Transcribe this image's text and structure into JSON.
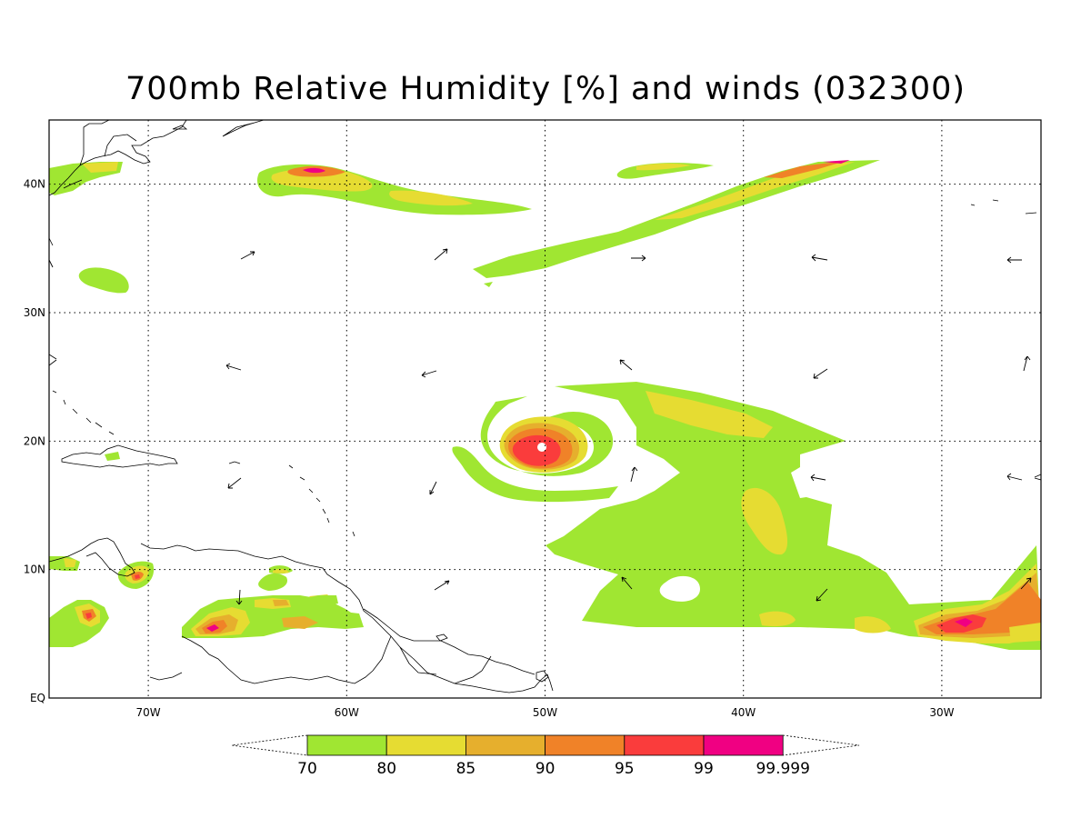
{
  "title": "700mb Relative Humidity [%] and winds (032300)",
  "map": {
    "lon_range": [
      -75,
      -25
    ],
    "lat_range": [
      0,
      45
    ],
    "lon_ticks": [
      {
        "value": -70,
        "label": "70W"
      },
      {
        "value": -60,
        "label": "60W"
      },
      {
        "value": -50,
        "label": "50W"
      },
      {
        "value": -40,
        "label": "40W"
      },
      {
        "value": -30,
        "label": "30W"
      }
    ],
    "lat_ticks": [
      {
        "value": 0,
        "label": "EQ"
      },
      {
        "value": 10,
        "label": "10N"
      },
      {
        "value": 20,
        "label": "20N"
      },
      {
        "value": 30,
        "label": "30N"
      },
      {
        "value": 40,
        "label": "40N"
      }
    ],
    "gridlines": "dotted",
    "wind_vectors": "arrows"
  },
  "colorbar": {
    "levels": [
      "70",
      "80",
      "85",
      "90",
      "95",
      "99",
      "99.999"
    ],
    "colors": [
      "#a0e632",
      "#e6dc32",
      "#e6af2d",
      "#f08228",
      "#fa3c3c",
      "#f00082"
    ]
  }
}
